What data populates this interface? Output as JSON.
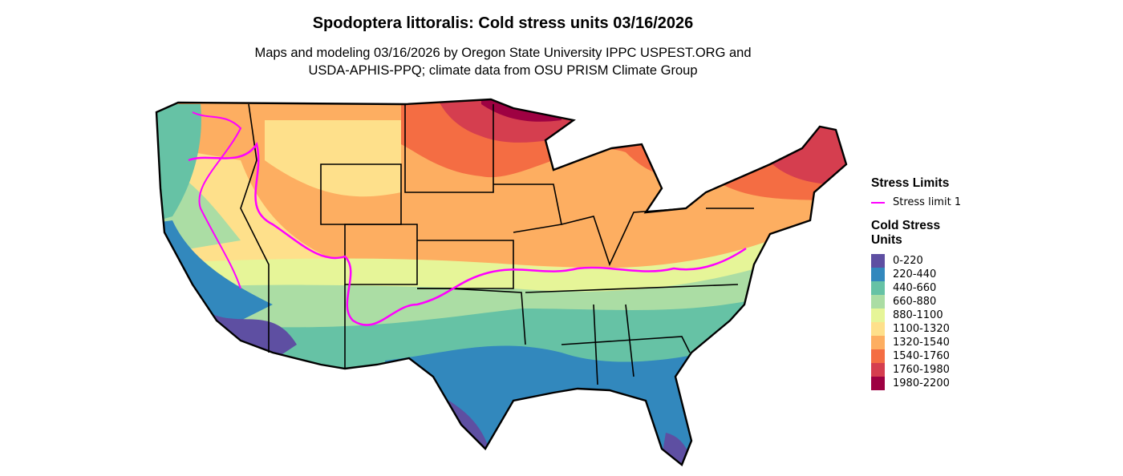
{
  "title": "Spodoptera littoralis: Cold stress units 03/16/2026",
  "subtitle_line1": "Maps and modeling 03/16/2026 by Oregon State University IPPC USPEST.ORG and",
  "subtitle_line2": "USDA-APHIS-PPQ; climate data from OSU PRISM Climate Group",
  "legend": {
    "stress_title": "Stress Limits",
    "stress_items": [
      {
        "label": "Stress limit 1",
        "color": "#ff00ff"
      }
    ],
    "units_title_line1": "Cold Stress",
    "units_title_line2": "Units",
    "classes": [
      {
        "label": "0-220",
        "color": "#5E4FA2"
      },
      {
        "label": "220-440",
        "color": "#3288BD"
      },
      {
        "label": "440-660",
        "color": "#66C2A5"
      },
      {
        "label": "660-880",
        "color": "#ABDDA4"
      },
      {
        "label": "880-1100",
        "color": "#E6F598"
      },
      {
        "label": "1100-1320",
        "color": "#FEE08B"
      },
      {
        "label": "1320-1540",
        "color": "#FDAE61"
      },
      {
        "label": "1540-1760",
        "color": "#F46D43"
      },
      {
        "label": "1760-1980",
        "color": "#D53E4F"
      },
      {
        "label": "1980-2200",
        "color": "#9E0142"
      }
    ]
  }
}
